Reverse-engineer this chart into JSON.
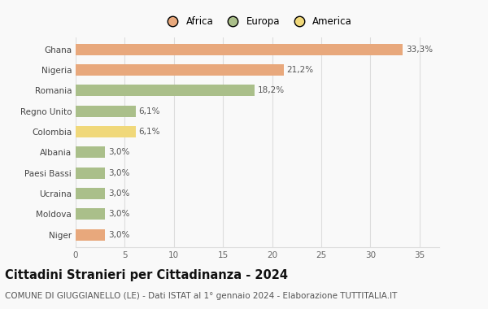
{
  "countries": [
    "Ghana",
    "Nigeria",
    "Romania",
    "Regno Unito",
    "Colombia",
    "Albania",
    "Paesi Bassi",
    "Ucraina",
    "Moldova",
    "Niger"
  ],
  "values": [
    33.3,
    21.2,
    18.2,
    6.1,
    6.1,
    3.0,
    3.0,
    3.0,
    3.0,
    3.0
  ],
  "labels": [
    "33,3%",
    "21,2%",
    "18,2%",
    "6,1%",
    "6,1%",
    "3,0%",
    "3,0%",
    "3,0%",
    "3,0%",
    "3,0%"
  ],
  "bar_colors": [
    "#E8A87C",
    "#E8A87C",
    "#AABF8A",
    "#AABF8A",
    "#F0D87A",
    "#AABF8A",
    "#AABF8A",
    "#AABF8A",
    "#AABF8A",
    "#E8A87C"
  ],
  "xlim": [
    0,
    37
  ],
  "xticks": [
    0,
    5,
    10,
    15,
    20,
    25,
    30,
    35
  ],
  "title": "Cittadini Stranieri per Cittadinanza - 2024",
  "subtitle": "COMUNE DI GIUGGIANELLO (LE) - Dati ISTAT al 1° gennaio 2024 - Elaborazione TUTTITALIA.IT",
  "legend_labels": [
    "Africa",
    "Europa",
    "America"
  ],
  "legend_colors": [
    "#E8A87C",
    "#AABF8A",
    "#F0D87A"
  ],
  "background_color": "#f9f9f9",
  "grid_color": "#dddddd",
  "title_fontsize": 10.5,
  "subtitle_fontsize": 7.5,
  "label_fontsize": 7.5,
  "tick_fontsize": 7.5,
  "legend_fontsize": 8.5
}
